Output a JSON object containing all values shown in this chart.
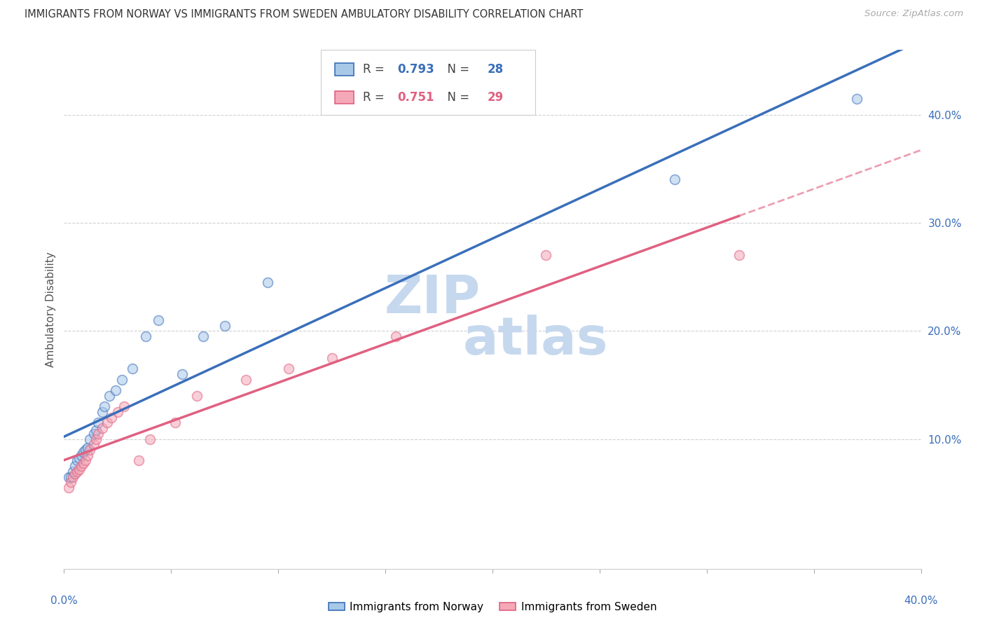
{
  "title": "IMMIGRANTS FROM NORWAY VS IMMIGRANTS FROM SWEDEN AMBULATORY DISABILITY CORRELATION CHART",
  "source": "Source: ZipAtlas.com",
  "ylabel": "Ambulatory Disability",
  "legend_norway": "Immigrants from Norway",
  "legend_sweden": "Immigrants from Sweden",
  "norway_R": 0.793,
  "norway_N": 28,
  "sweden_R": 0.751,
  "sweden_N": 29,
  "norway_color": "#a8c8e8",
  "sweden_color": "#f4a8b8",
  "norway_line_color": "#3a6fba",
  "sweden_line_color": "#e06080",
  "norway_x": [
    0.002,
    0.003,
    0.004,
    0.005,
    0.006,
    0.007,
    0.008,
    0.009,
    0.01,
    0.011,
    0.012,
    0.014,
    0.015,
    0.016,
    0.018,
    0.019,
    0.021,
    0.024,
    0.027,
    0.032,
    0.038,
    0.044,
    0.055,
    0.065,
    0.075,
    0.095,
    0.285,
    0.37
  ],
  "norway_y": [
    0.065,
    0.065,
    0.07,
    0.075,
    0.08,
    0.082,
    0.085,
    0.088,
    0.09,
    0.092,
    0.1,
    0.105,
    0.108,
    0.115,
    0.125,
    0.13,
    0.14,
    0.145,
    0.155,
    0.165,
    0.195,
    0.21,
    0.16,
    0.195,
    0.205,
    0.245,
    0.34,
    0.415
  ],
  "sweden_x": [
    0.002,
    0.003,
    0.004,
    0.005,
    0.006,
    0.007,
    0.008,
    0.009,
    0.01,
    0.011,
    0.012,
    0.014,
    0.015,
    0.016,
    0.018,
    0.02,
    0.022,
    0.025,
    0.028,
    0.035,
    0.04,
    0.052,
    0.062,
    0.085,
    0.105,
    0.125,
    0.155,
    0.225,
    0.315
  ],
  "sweden_y": [
    0.055,
    0.06,
    0.065,
    0.068,
    0.07,
    0.072,
    0.075,
    0.078,
    0.08,
    0.085,
    0.09,
    0.095,
    0.1,
    0.105,
    0.11,
    0.115,
    0.12,
    0.125,
    0.13,
    0.08,
    0.1,
    0.115,
    0.14,
    0.155,
    0.165,
    0.175,
    0.195,
    0.27,
    0.27
  ],
  "xmin": 0.0,
  "xmax": 0.4,
  "ymin": -0.02,
  "ymax": 0.46,
  "yticks": [
    0.1,
    0.2,
    0.3,
    0.4
  ],
  "ytick_labels": [
    "10.0%",
    "20.0%",
    "30.0%",
    "40.0%"
  ],
  "grid_color": "#d0d0d0",
  "background_color": "#ffffff",
  "watermark_top": "ZIP",
  "watermark_bot": "atlas",
  "watermark_color": "#c5d8ee",
  "marker_size": 100,
  "marker_alpha": 0.55
}
